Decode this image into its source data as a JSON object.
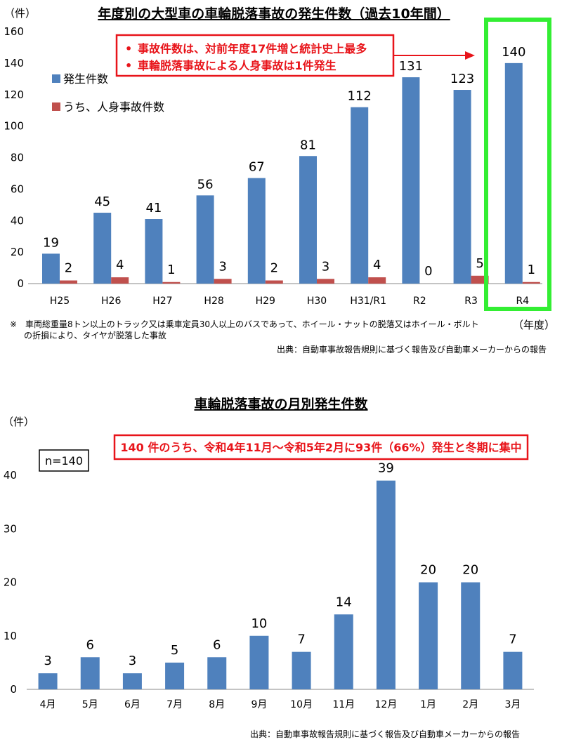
{
  "colors": {
    "blue": "#4f81bd",
    "red": "#c0504d",
    "callout": "#e8141a",
    "highlight": "#33ee33"
  },
  "charts": {
    "top": {
      "unit": "（件）",
      "year_label": "（年度）",
      "callout": [
        "事故件数は、対前年度17件増と統計史上最多",
        "車輪脱落事故による人身事故は1件発生"
      ],
      "callout_bullet": "•",
      "note": [
        "※　車両総重量8トン以上のトラック又は乗車定員30人以上のバスであって、ホイール・ナットの脱落又はホイール・ボルト",
        "の折損により、タイヤが脱落した事故"
      ],
      "source": "出典：自動車事故報告規則に基づく報告及び自動車メーカーからの報告"
    },
    "bottom": {
      "unit": "（件）",
      "n_label": "n=140",
      "callout": "140 件のうち、令和4年11月～令和5年2月に93件（66%）発生と冬期に集中",
      "source": "出典：自動車事故報告規則に基づく報告及び自動車メーカーからの報告"
    }
  },
  "chart_data": [
    {
      "type": "bar",
      "title": "年度別の大型車の車輪脱落事故の発生件数（過去10年間）",
      "categories": [
        "H25",
        "H26",
        "H27",
        "H28",
        "H29",
        "H30",
        "H31/R1",
        "R2",
        "R3",
        "R4"
      ],
      "series": [
        {
          "name": "発生件数",
          "values": [
            19,
            45,
            41,
            56,
            67,
            81,
            112,
            131,
            123,
            140
          ]
        },
        {
          "name": "うち、人身事故件数",
          "values": [
            2,
            4,
            1,
            3,
            2,
            3,
            4,
            0,
            5,
            1
          ]
        }
      ],
      "ylim": [
        0,
        160
      ],
      "yticks": [
        0,
        20,
        40,
        60,
        80,
        100,
        120,
        140,
        160
      ],
      "highlight_category": "R4",
      "legend": "top-left"
    },
    {
      "type": "bar",
      "title": "車輪脱落事故の月別発生件数",
      "categories": [
        "4月",
        "5月",
        "6月",
        "7月",
        "8月",
        "9月",
        "10月",
        "11月",
        "12月",
        "1月",
        "2月",
        "3月"
      ],
      "values": [
        3,
        6,
        3,
        5,
        6,
        10,
        7,
        14,
        39,
        20,
        20,
        7
      ],
      "ylim": [
        0,
        40
      ],
      "yticks": [
        0,
        10,
        20,
        30,
        40
      ]
    }
  ]
}
